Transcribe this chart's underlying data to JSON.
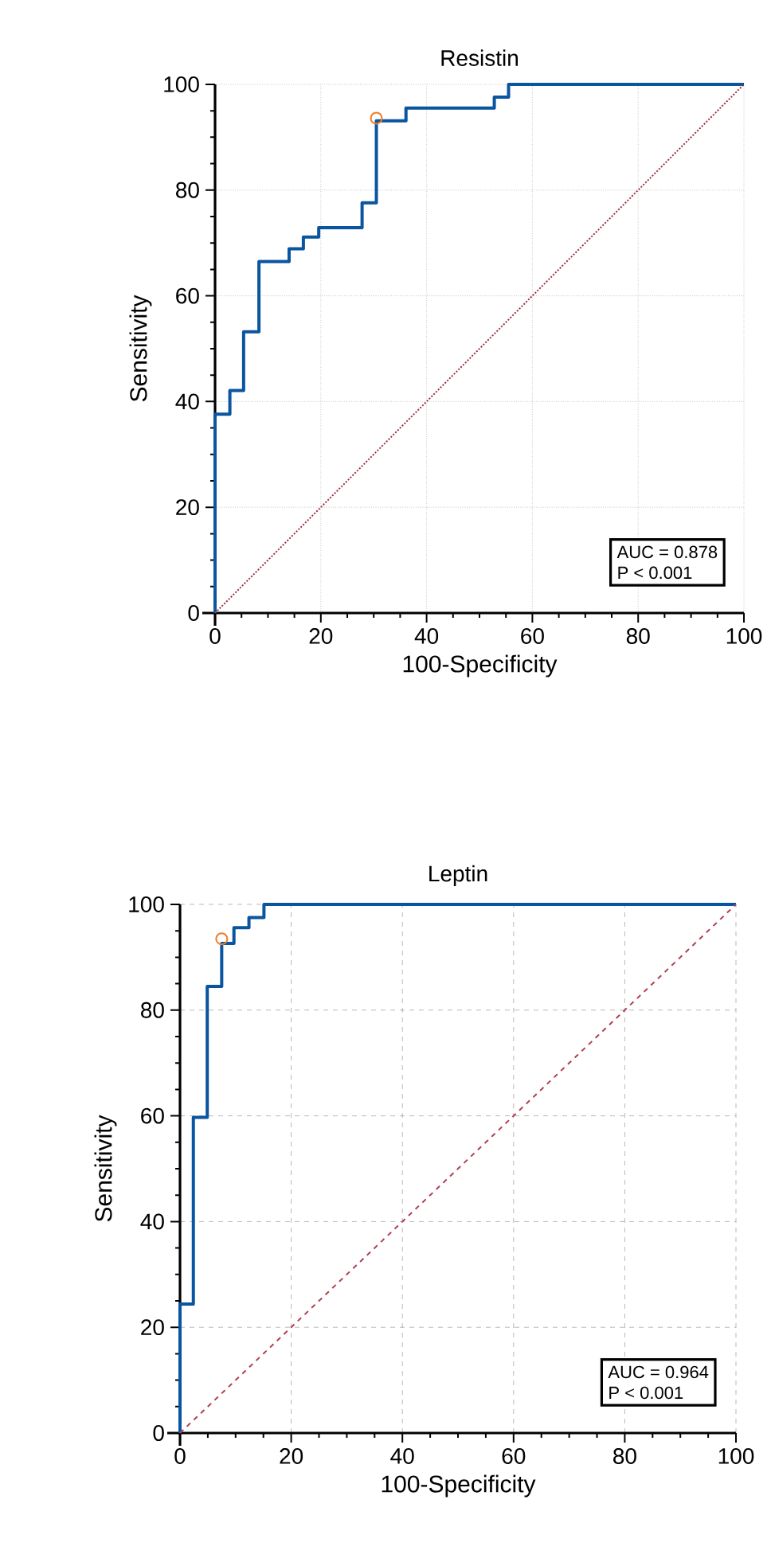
{
  "chart_data": [
    {
      "type": "step",
      "title": "Resistin",
      "xlabel": "100-Specificity",
      "ylabel": "Sensitivity",
      "xlim": [
        0,
        100
      ],
      "ylim": [
        0,
        100
      ],
      "xticks": [
        0,
        20,
        40,
        60,
        80,
        100
      ],
      "yticks": [
        0,
        20,
        40,
        60,
        80,
        100
      ],
      "grid": true,
      "line_style": "dotted",
      "series": [
        {
          "type": "step",
          "color": "#0a55a0",
          "marker": "none",
          "line_style": "solid",
          "x": [
            0,
            0,
            2.8,
            5.4,
            8.3,
            14.0,
            16.7,
            19.6,
            27.8,
            30.5,
            36.1,
            52.8,
            55.5,
            100
          ],
          "values": [
            0,
            37.6,
            42.1,
            53.2,
            66.5,
            68.9,
            71.1,
            72.9,
            77.6,
            93.1,
            95.5,
            97.6,
            100,
            100
          ]
        },
        {
          "type": "scatter",
          "color": "#f07c24",
          "marker": "circle",
          "x": [
            30.5
          ],
          "values": [
            93.6
          ]
        },
        {
          "type": "line",
          "color": "#a0303c",
          "marker": "none",
          "line_style": "dotted",
          "x": [
            0,
            100
          ],
          "values": [
            0,
            100
          ]
        }
      ],
      "annotations": [
        "AUC = 0.878",
        "P < 0.001"
      ]
    },
    {
      "type": "step",
      "title": "Leptin",
      "xlabel": "100-Specificity",
      "ylabel": "Sensitivity",
      "xlim": [
        0,
        100
      ],
      "ylim": [
        0,
        100
      ],
      "xticks": [
        0,
        20,
        40,
        60,
        80,
        100
      ],
      "yticks": [
        0,
        20,
        40,
        60,
        80,
        100
      ],
      "grid": true,
      "line_style": "dashed",
      "series": [
        {
          "type": "step",
          "color": "#0a55a0",
          "marker": "none",
          "line_style": "solid",
          "x": [
            0,
            0,
            2.4,
            4.9,
            7.5,
            9.7,
            12.4,
            15.1,
            100
          ],
          "values": [
            0,
            24.4,
            59.7,
            84.5,
            92.6,
            95.6,
            97.5,
            100,
            100
          ]
        },
        {
          "type": "scatter",
          "color": "#f07c24",
          "marker": "circle",
          "x": [
            7.5
          ],
          "values": [
            93.5
          ]
        },
        {
          "type": "line",
          "color": "#b04050",
          "marker": "none",
          "line_style": "dashed",
          "x": [
            0,
            100
          ],
          "values": [
            0,
            100
          ]
        }
      ],
      "annotations": [
        "AUC = 0.964",
        "P < 0.001"
      ]
    }
  ]
}
